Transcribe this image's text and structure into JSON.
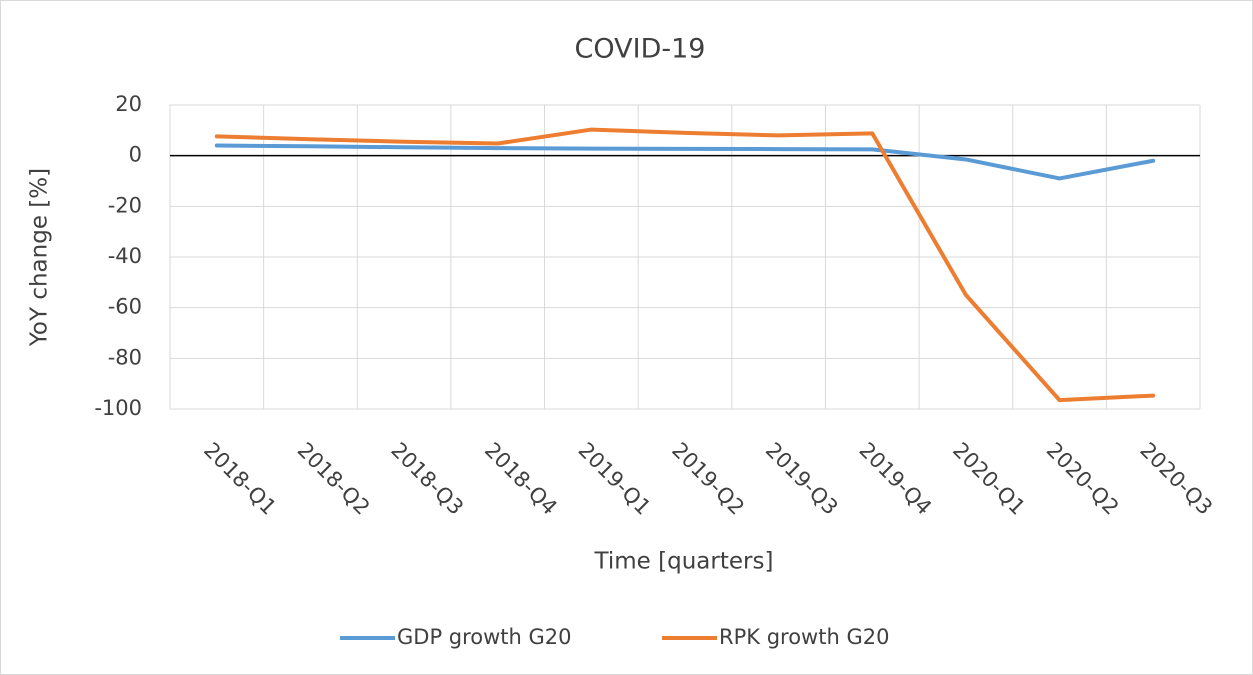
{
  "chart_data": {
    "type": "line",
    "title": "COVID-19",
    "x_label": "Time [quarters]",
    "y_label": "YoY change [%]",
    "categories": [
      "2018-Q1",
      "2018-Q2",
      "2018-Q3",
      "2018-Q4",
      "2019-Q1",
      "2019-Q2",
      "2019-Q3",
      "2019-Q4",
      "2020-Q1",
      "2020-Q2",
      "2020-Q3"
    ],
    "series": [
      {
        "name": "GDP growth G20",
        "color": "#5b9bd5",
        "values": [
          4,
          3.7,
          3.3,
          3.0,
          2.8,
          2.7,
          2.6,
          2.5,
          -1.5,
          -9,
          -2
        ]
      },
      {
        "name": "RPK growth G20",
        "color": "#ed7d31",
        "values": [
          7.6,
          6.5,
          5.5,
          4.8,
          10.3,
          9,
          8,
          8.8,
          -55,
          -96.5,
          -94.7
        ]
      }
    ],
    "ylim": [
      -100,
      20
    ],
    "yticks": [
      -100,
      -80,
      -60,
      -40,
      -20,
      0,
      20
    ],
    "grid": true,
    "legend": "bottom"
  }
}
